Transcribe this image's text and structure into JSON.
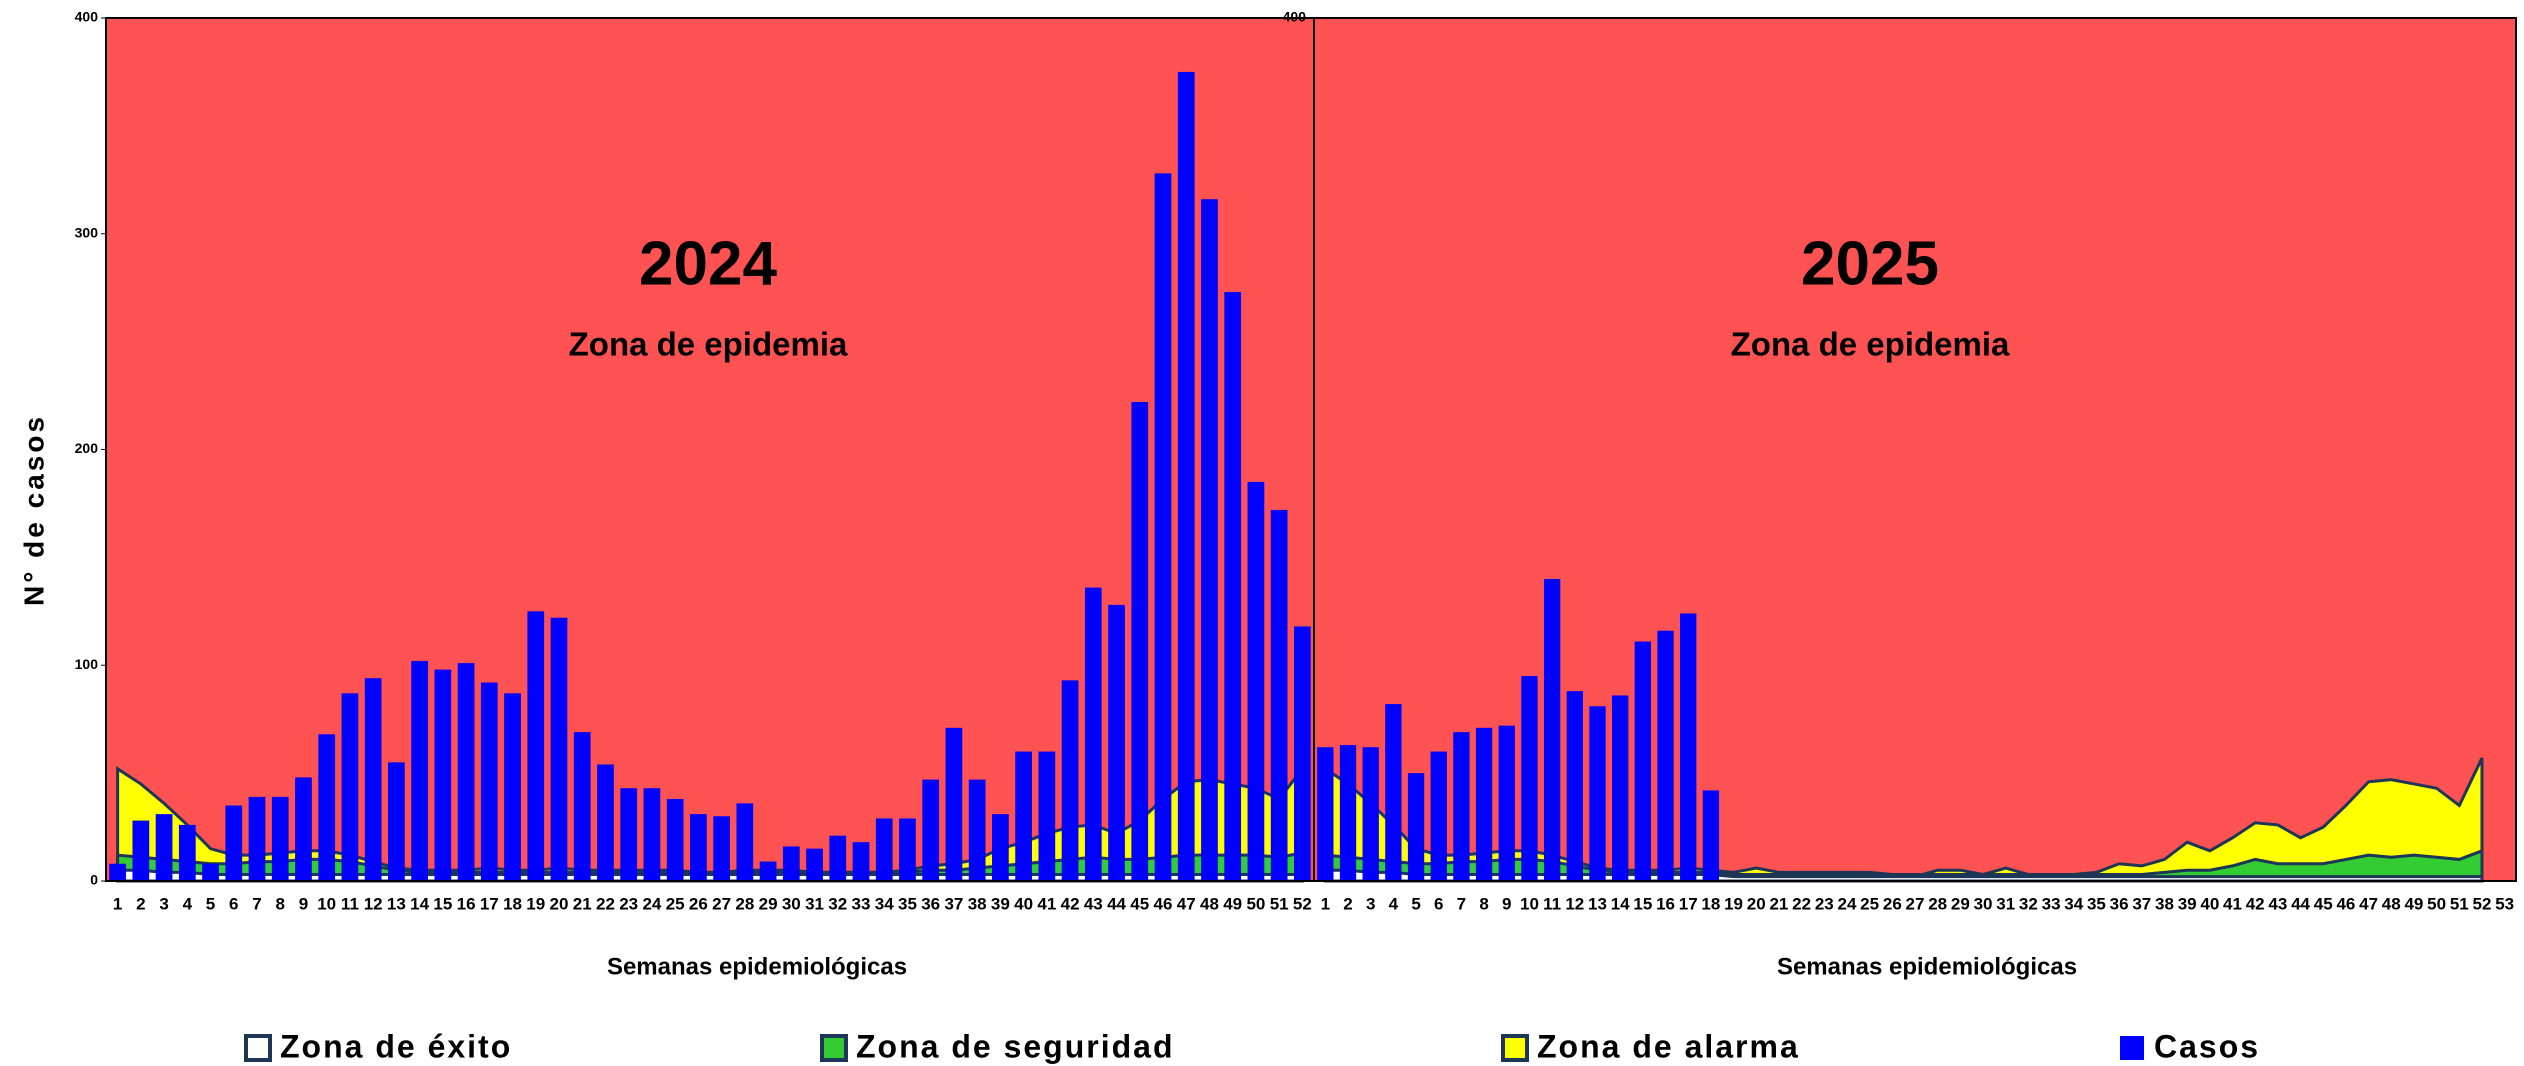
{
  "chart_data": [
    {
      "type": "bar",
      "title": "2024",
      "annotation": "Zona de epidemia",
      "background_color": "#ff5252",
      "y_label": "N° de casos",
      "x_label": "Semanas epidemiológicas",
      "categories": [
        1,
        2,
        3,
        4,
        5,
        6,
        7,
        8,
        9,
        10,
        11,
        12,
        13,
        14,
        15,
        16,
        17,
        18,
        19,
        20,
        21,
        22,
        23,
        24,
        25,
        26,
        27,
        28,
        29,
        30,
        31,
        32,
        33,
        34,
        35,
        36,
        37,
        38,
        39,
        40,
        41,
        42,
        43,
        44,
        45,
        46,
        47,
        48,
        49,
        50,
        51,
        52
      ],
      "ylim": [
        0,
        400
      ],
      "yticks": [
        0,
        100,
        200,
        300,
        400
      ],
      "series": [
        {
          "name": "Zona de éxito",
          "type": "area",
          "color": "#ffffff",
          "values": [
            5,
            5,
            4,
            4,
            3,
            3,
            3,
            3,
            3,
            3,
            3,
            3,
            3,
            3,
            3,
            3,
            3,
            3,
            3,
            3,
            3,
            3,
            3,
            3,
            3,
            3,
            3,
            3,
            3,
            3,
            3,
            3,
            3,
            3,
            3,
            3,
            3,
            3,
            3,
            3,
            3,
            3,
            3,
            3,
            3,
            3,
            3,
            3,
            3,
            3,
            3,
            3
          ]
        },
        {
          "name": "Zona de seguridad",
          "type": "area",
          "color": "#33cc33",
          "values": [
            12,
            11,
            10,
            9,
            8,
            8,
            9,
            9,
            10,
            10,
            9,
            7,
            5,
            4,
            4,
            4,
            4,
            4,
            4,
            4,
            4,
            4,
            4,
            4,
            4,
            4,
            4,
            4,
            4,
            4,
            4,
            4,
            4,
            4,
            4,
            5,
            5,
            6,
            7,
            8,
            9,
            10,
            11,
            10,
            10,
            11,
            12,
            12,
            12,
            12,
            11,
            13
          ]
        },
        {
          "name": "Zona de alarma",
          "type": "area",
          "color": "#ffff00",
          "values": [
            52,
            45,
            36,
            26,
            15,
            12,
            12,
            13,
            14,
            14,
            12,
            9,
            6,
            5,
            5,
            5,
            6,
            5,
            5,
            6,
            5,
            5,
            5,
            5,
            5,
            4,
            4,
            5,
            5,
            5,
            4,
            4,
            4,
            4,
            5,
            7,
            8,
            10,
            15,
            18,
            22,
            25,
            26,
            22,
            28,
            38,
            46,
            47,
            45,
            43,
            38,
            52
          ]
        },
        {
          "name": "Casos",
          "type": "bar",
          "color": "#0000ff",
          "values": [
            8,
            28,
            31,
            26,
            8,
            35,
            39,
            39,
            48,
            68,
            87,
            94,
            55,
            102,
            98,
            101,
            92,
            87,
            125,
            122,
            69,
            54,
            43,
            43,
            38,
            31,
            30,
            36,
            9,
            16,
            15,
            21,
            18,
            29,
            29,
            47,
            71,
            47,
            31,
            60,
            60,
            93,
            136,
            128,
            222,
            328,
            375,
            316,
            273,
            185,
            172,
            118
          ]
        }
      ]
    },
    {
      "type": "bar",
      "title": "2025",
      "annotation": "Zona de epidemia",
      "background_color": "#ff5252",
      "x_label": "Semanas epidemiológicas",
      "categories": [
        1,
        2,
        3,
        4,
        5,
        6,
        7,
        8,
        9,
        10,
        11,
        12,
        13,
        14,
        15,
        16,
        17,
        18,
        19,
        20,
        21,
        22,
        23,
        24,
        25,
        26,
        27,
        28,
        29,
        30,
        31,
        32,
        33,
        34,
        35,
        36,
        37,
        38,
        39,
        40,
        41,
        42,
        43,
        44,
        45,
        46,
        47,
        48,
        49,
        50,
        51,
        52,
        53
      ],
      "ylim": [
        0,
        400
      ],
      "yticks": [
        400
      ],
      "series": [
        {
          "name": "Zona de éxito",
          "type": "area",
          "color": "#ffffff",
          "values": [
            5,
            5,
            4,
            4,
            3,
            3,
            3,
            3,
            3,
            3,
            3,
            3,
            3,
            3,
            3,
            3,
            3,
            3,
            2,
            2,
            2,
            2,
            2,
            2,
            2,
            2,
            2,
            2,
            2,
            2,
            2,
            2,
            2,
            2,
            2,
            2,
            2,
            2,
            2,
            2,
            2,
            2,
            2,
            2,
            2,
            2,
            2,
            2,
            2,
            2,
            2,
            2,
            null
          ]
        },
        {
          "name": "Zona de seguridad",
          "type": "area",
          "color": "#33cc33",
          "values": [
            12,
            11,
            10,
            9,
            8,
            8,
            9,
            9,
            10,
            10,
            9,
            7,
            5,
            4,
            4,
            4,
            4,
            4,
            3,
            3,
            3,
            3,
            3,
            3,
            3,
            3,
            3,
            3,
            3,
            3,
            3,
            3,
            3,
            3,
            3,
            3,
            3,
            4,
            5,
            5,
            7,
            10,
            8,
            8,
            8,
            10,
            12,
            11,
            12,
            11,
            10,
            14,
            null
          ]
        },
        {
          "name": "Zona de alarma",
          "type": "area",
          "color": "#ffff00",
          "values": [
            52,
            45,
            36,
            26,
            15,
            12,
            12,
            13,
            14,
            14,
            12,
            9,
            6,
            5,
            5,
            5,
            6,
            5,
            4,
            6,
            4,
            4,
            4,
            4,
            4,
            3,
            2,
            5,
            5,
            3,
            6,
            3,
            3,
            3,
            4,
            8,
            7,
            10,
            18,
            14,
            20,
            27,
            26,
            20,
            25,
            35,
            46,
            47,
            45,
            43,
            35,
            57,
            null
          ]
        },
        {
          "name": "Casos",
          "type": "bar",
          "color": "#0000ff",
          "values": [
            62,
            63,
            62,
            82,
            50,
            60,
            69,
            71,
            72,
            95,
            140,
            88,
            81,
            86,
            111,
            116,
            124,
            42,
            null,
            null,
            null,
            null,
            null,
            null,
            null,
            null,
            null,
            null,
            null,
            null,
            null,
            null,
            null,
            null,
            null,
            null,
            null,
            null,
            null,
            null,
            null,
            null,
            null,
            null,
            null,
            null,
            null,
            null,
            null,
            null,
            null,
            null,
            null
          ]
        }
      ]
    }
  ]
}
